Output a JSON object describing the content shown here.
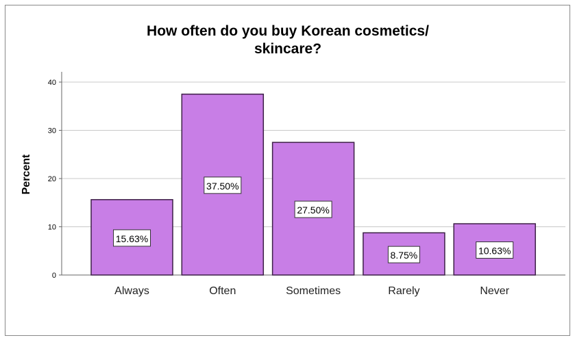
{
  "chart_data": {
    "type": "bar",
    "title_lines": [
      "How often do you buy Korean cosmetics/",
      "skincare?"
    ],
    "xlabel": "",
    "ylabel": "Percent",
    "ylim": [
      0,
      42
    ],
    "yticks": [
      0,
      10,
      20,
      30,
      40
    ],
    "grid": true,
    "categories": [
      "Always",
      "Often",
      "Sometimes",
      "Rarely",
      "Never"
    ],
    "values": [
      15.63,
      37.5,
      27.5,
      8.75,
      10.63
    ],
    "data_labels": [
      "15.63%",
      "37.50%",
      "27.50%",
      "8.75%",
      "10.63%"
    ],
    "bar_color": "#c87ee6",
    "bar_edge_color": "#3c1e46"
  }
}
